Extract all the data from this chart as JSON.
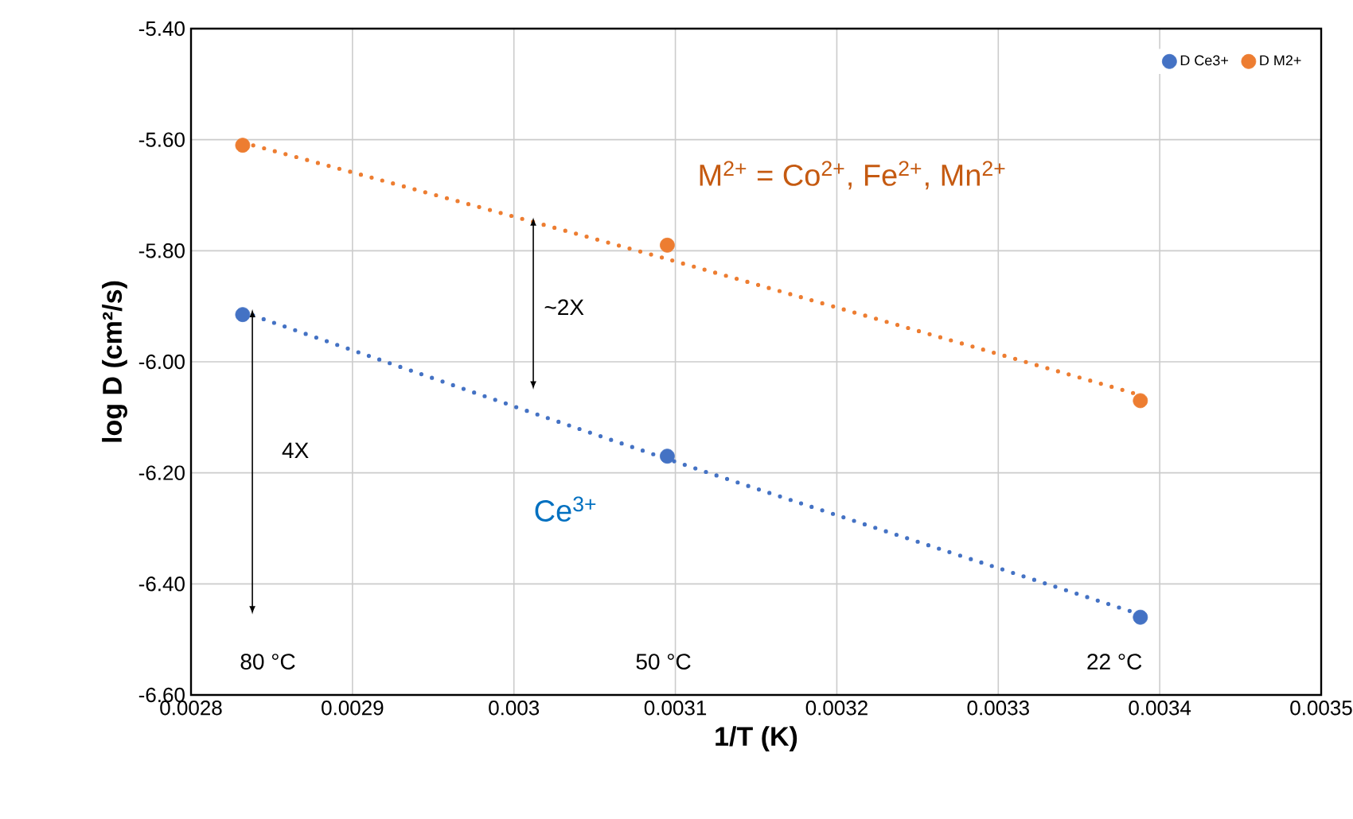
{
  "chart_data": {
    "type": "scatter",
    "xlabel": "1/T (K)",
    "ylabel": "log D (cm²/s)",
    "xlim": [
      0.0028,
      0.0035
    ],
    "ylim": [
      -6.6,
      -5.4
    ],
    "xticks": [
      0.0028,
      0.0029,
      0.003,
      0.0031,
      0.0032,
      0.0033,
      0.0034,
      0.0035
    ],
    "yticks": [
      {
        "value": -6.6,
        "label": "-6.60"
      },
      {
        "value": -6.4,
        "label": "-6.40"
      },
      {
        "value": -6.2,
        "label": "-6.20"
      },
      {
        "value": -6.0,
        "label": "-6.00"
      },
      {
        "value": -5.8,
        "label": "-5.80"
      },
      {
        "value": -5.6,
        "label": "-5.60"
      },
      {
        "value": -5.4,
        "label": "-5.40"
      }
    ],
    "grid": true,
    "legend": "top right",
    "series": [
      {
        "name": "D Ce3+",
        "color": "#4472c4",
        "marker": "circle",
        "x": [
          0.002832,
          0.003095,
          0.003388
        ],
        "values": [
          -5.915,
          -6.17,
          -6.46
        ]
      },
      {
        "name": "D M2+",
        "color": "#ed7d31",
        "marker": "circle",
        "x": [
          0.002832,
          0.003095,
          0.003388
        ],
        "values": [
          -5.61,
          -5.79,
          -6.07
        ]
      },
      {
        "type": "line",
        "color": "#4472c4",
        "line_style": "dotted",
        "marker": "none",
        "x": [
          0.002832,
          0.003095,
          0.003388
        ],
        "values": [
          -5.91,
          -6.175,
          -6.455
        ]
      },
      {
        "type": "line",
        "color": "#ed7d31",
        "line_style": "dotted",
        "marker": "none",
        "x": [
          0.002832,
          0.003095,
          0.003388
        ],
        "values": [
          -5.605,
          -5.815,
          -6.06
        ]
      }
    ],
    "annotations": [
      "M$^{2+}$ = Co$^{2+}$, Fe$^{2+}$, Mn$^{2+}$",
      "Ce$^{3+}$",
      "~2X",
      "4X",
      "80 °C",
      "50 °C",
      "22 °C"
    ]
  }
}
